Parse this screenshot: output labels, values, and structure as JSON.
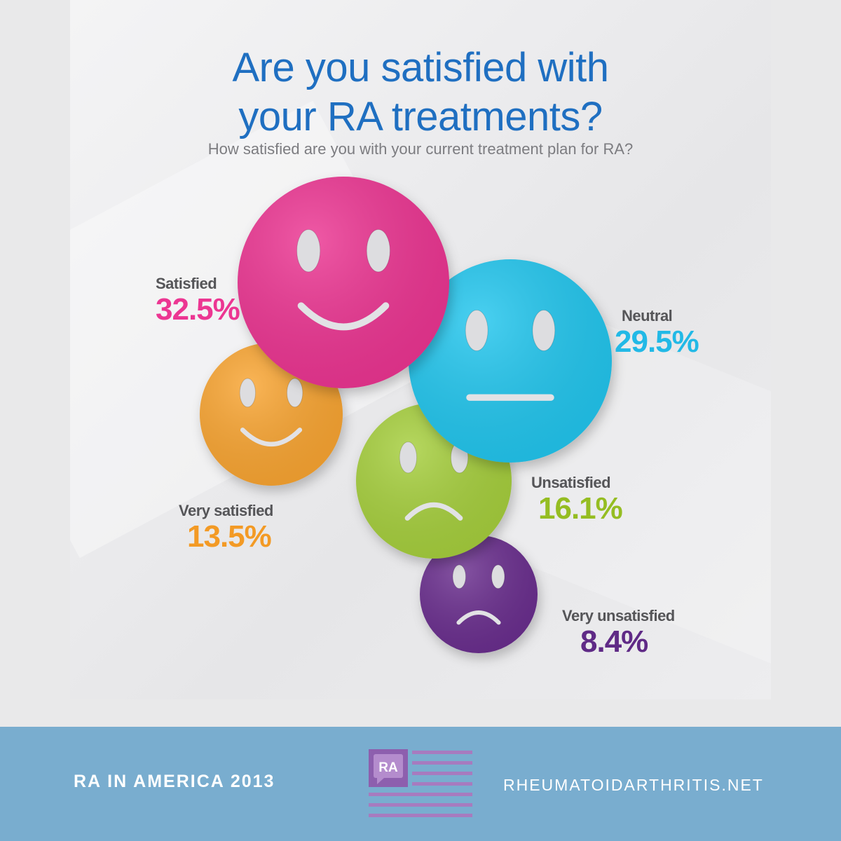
{
  "title_line1": "Are you satisfied with",
  "title_line2": "your RA treatments?",
  "subtitle": "How satisfied are you with your current treatment plan for RA?",
  "chart_data": {
    "type": "bubble",
    "categories": [
      "Satisfied",
      "Neutral",
      "Very satisfied",
      "Unsatisfied",
      "Very unsatisfied"
    ],
    "values": [
      32.5,
      29.5,
      13.5,
      16.1,
      8.4
    ],
    "value_labels": [
      "32.5%",
      "29.5%",
      "13.5%",
      "16.1%",
      "8.4%"
    ],
    "colors": [
      "#ec3692",
      "#22c6ee",
      "#f9a533",
      "#a6cf3c",
      "#6a2d8e"
    ],
    "faces": [
      "smile",
      "neutral",
      "smile",
      "frown",
      "frown"
    ],
    "title": "Are you satisfied with your RA treatments?"
  },
  "footer": {
    "left_text": "RA IN AMERICA 2013",
    "logo_text": "RA",
    "right_text": "RHEUMATOIDARTHRITIS.NET"
  }
}
